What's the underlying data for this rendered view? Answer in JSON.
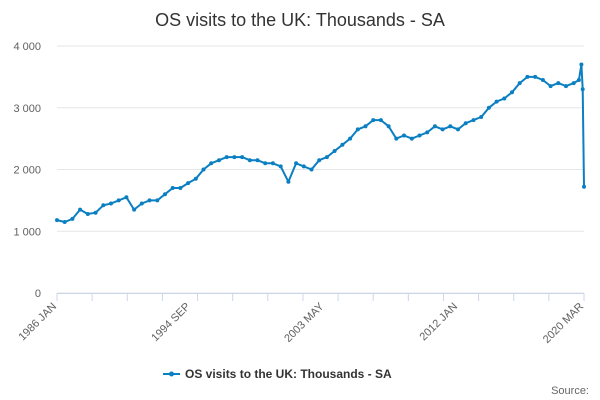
{
  "chart_data": {
    "type": "line",
    "title": "OS visits to the UK: Thousands - SA",
    "xlabel": "",
    "ylabel": "",
    "ylim": [
      0,
      4000
    ],
    "y_ticks": [
      {
        "value": 0,
        "label": "0"
      },
      {
        "value": 1000,
        "label": "1 000"
      },
      {
        "value": 2000,
        "label": "2 000"
      },
      {
        "value": 3000,
        "label": "3 000"
      },
      {
        "value": 4000,
        "label": "4 000"
      }
    ],
    "x_tick_labels": [
      "1986 JAN",
      "1994 SEP",
      "2003 MAY",
      "2012 JAN",
      "2020 MAR"
    ],
    "x_tick_values": [
      "1986-01",
      "1994-09",
      "2003-05",
      "2012-01",
      "2020-03"
    ],
    "x_range": [
      "1986-01",
      "2020-03"
    ],
    "grid": "horizontal",
    "legend_position": "bottom-center",
    "colors": {
      "series": "#0a7fc2"
    },
    "credits": "Source:",
    "series": [
      {
        "name": "OS visits to the UK: Thousands - SA",
        "x": [
          "1986-01",
          "1986-07",
          "1987-01",
          "1987-07",
          "1988-01",
          "1988-07",
          "1989-01",
          "1989-07",
          "1990-01",
          "1990-07",
          "1991-01",
          "1991-07",
          "1992-01",
          "1992-07",
          "1993-01",
          "1993-07",
          "1994-01",
          "1994-07",
          "1995-01",
          "1995-07",
          "1996-01",
          "1996-07",
          "1997-01",
          "1997-07",
          "1998-01",
          "1998-07",
          "1999-01",
          "1999-07",
          "2000-01",
          "2000-07",
          "2001-01",
          "2001-07",
          "2002-01",
          "2002-07",
          "2003-01",
          "2003-07",
          "2004-01",
          "2004-07",
          "2005-01",
          "2005-07",
          "2006-01",
          "2006-07",
          "2007-01",
          "2007-07",
          "2008-01",
          "2008-07",
          "2009-01",
          "2009-07",
          "2010-01",
          "2010-07",
          "2011-01",
          "2011-07",
          "2012-01",
          "2012-07",
          "2013-01",
          "2013-07",
          "2014-01",
          "2014-07",
          "2015-01",
          "2015-07",
          "2016-01",
          "2016-07",
          "2017-01",
          "2017-07",
          "2018-01",
          "2018-07",
          "2019-01",
          "2019-07",
          "2019-11",
          "2020-01",
          "2020-02",
          "2020-03"
        ],
        "values": [
          1180,
          1150,
          1200,
          1350,
          1280,
          1300,
          1420,
          1450,
          1500,
          1550,
          1350,
          1450,
          1500,
          1500,
          1600,
          1700,
          1700,
          1780,
          1850,
          2000,
          2100,
          2150,
          2200,
          2200,
          2200,
          2150,
          2150,
          2100,
          2100,
          2050,
          1800,
          2100,
          2050,
          2000,
          2150,
          2200,
          2300,
          2400,
          2500,
          2650,
          2700,
          2800,
          2800,
          2700,
          2500,
          2550,
          2500,
          2550,
          2600,
          2700,
          2650,
          2700,
          2650,
          2750,
          2800,
          2850,
          3000,
          3100,
          3150,
          3250,
          3400,
          3500,
          3500,
          3450,
          3350,
          3400,
          3350,
          3400,
          3450,
          3700,
          3300,
          1720
        ]
      }
    ]
  }
}
